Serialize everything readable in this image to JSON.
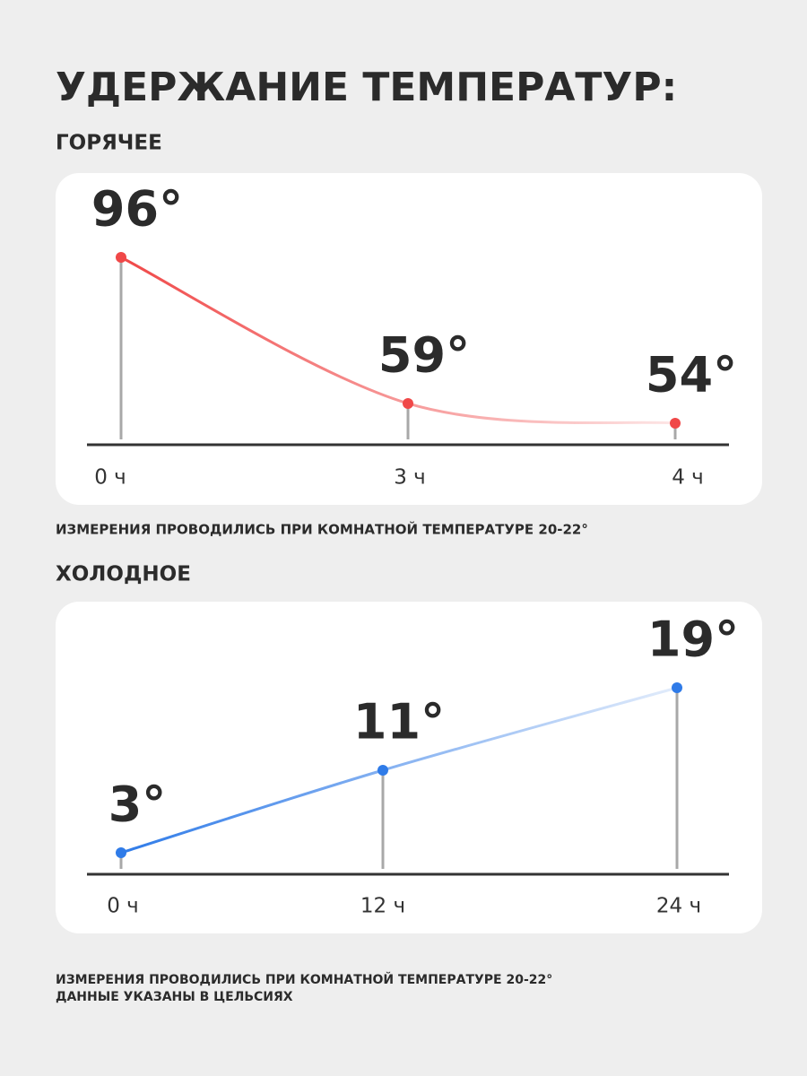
{
  "header": {
    "title": "УДЕРЖАНИЕ ТЕМПЕРАТУР:"
  },
  "chart_data": [
    {
      "type": "line",
      "title": "ГОРЯЧЕЕ",
      "categories": [
        "0 ч",
        "3 ч",
        "4 ч"
      ],
      "values": [
        96,
        59,
        54
      ],
      "value_labels": [
        "96°",
        "59°",
        "54°"
      ],
      "color": "#f04848",
      "fade_color": "#fde6e6"
    },
    {
      "type": "line",
      "title": "ХОЛОДНОЕ",
      "categories": [
        "0 ч",
        "12 ч",
        "24 ч"
      ],
      "values": [
        3,
        11,
        19
      ],
      "value_labels": [
        "3°",
        "11°",
        "19°"
      ],
      "color": "#2f7be8",
      "fade_color": "#e2ecfb"
    }
  ],
  "notes": [
    "ИЗМЕРЕНИЯ ПРОВОДИЛИСЬ ПРИ КОМНАТНОЙ ТЕМПЕРАТУРЕ 20-22°",
    "ИЗМЕРЕНИЯ ПРОВОДИЛИСЬ ПРИ КОМНАТНОЙ ТЕМПЕРАТУРЕ 20-22°",
    "ДАННЫЕ УКАЗАНЫ В ЦЕЛЬСИЯХ"
  ]
}
